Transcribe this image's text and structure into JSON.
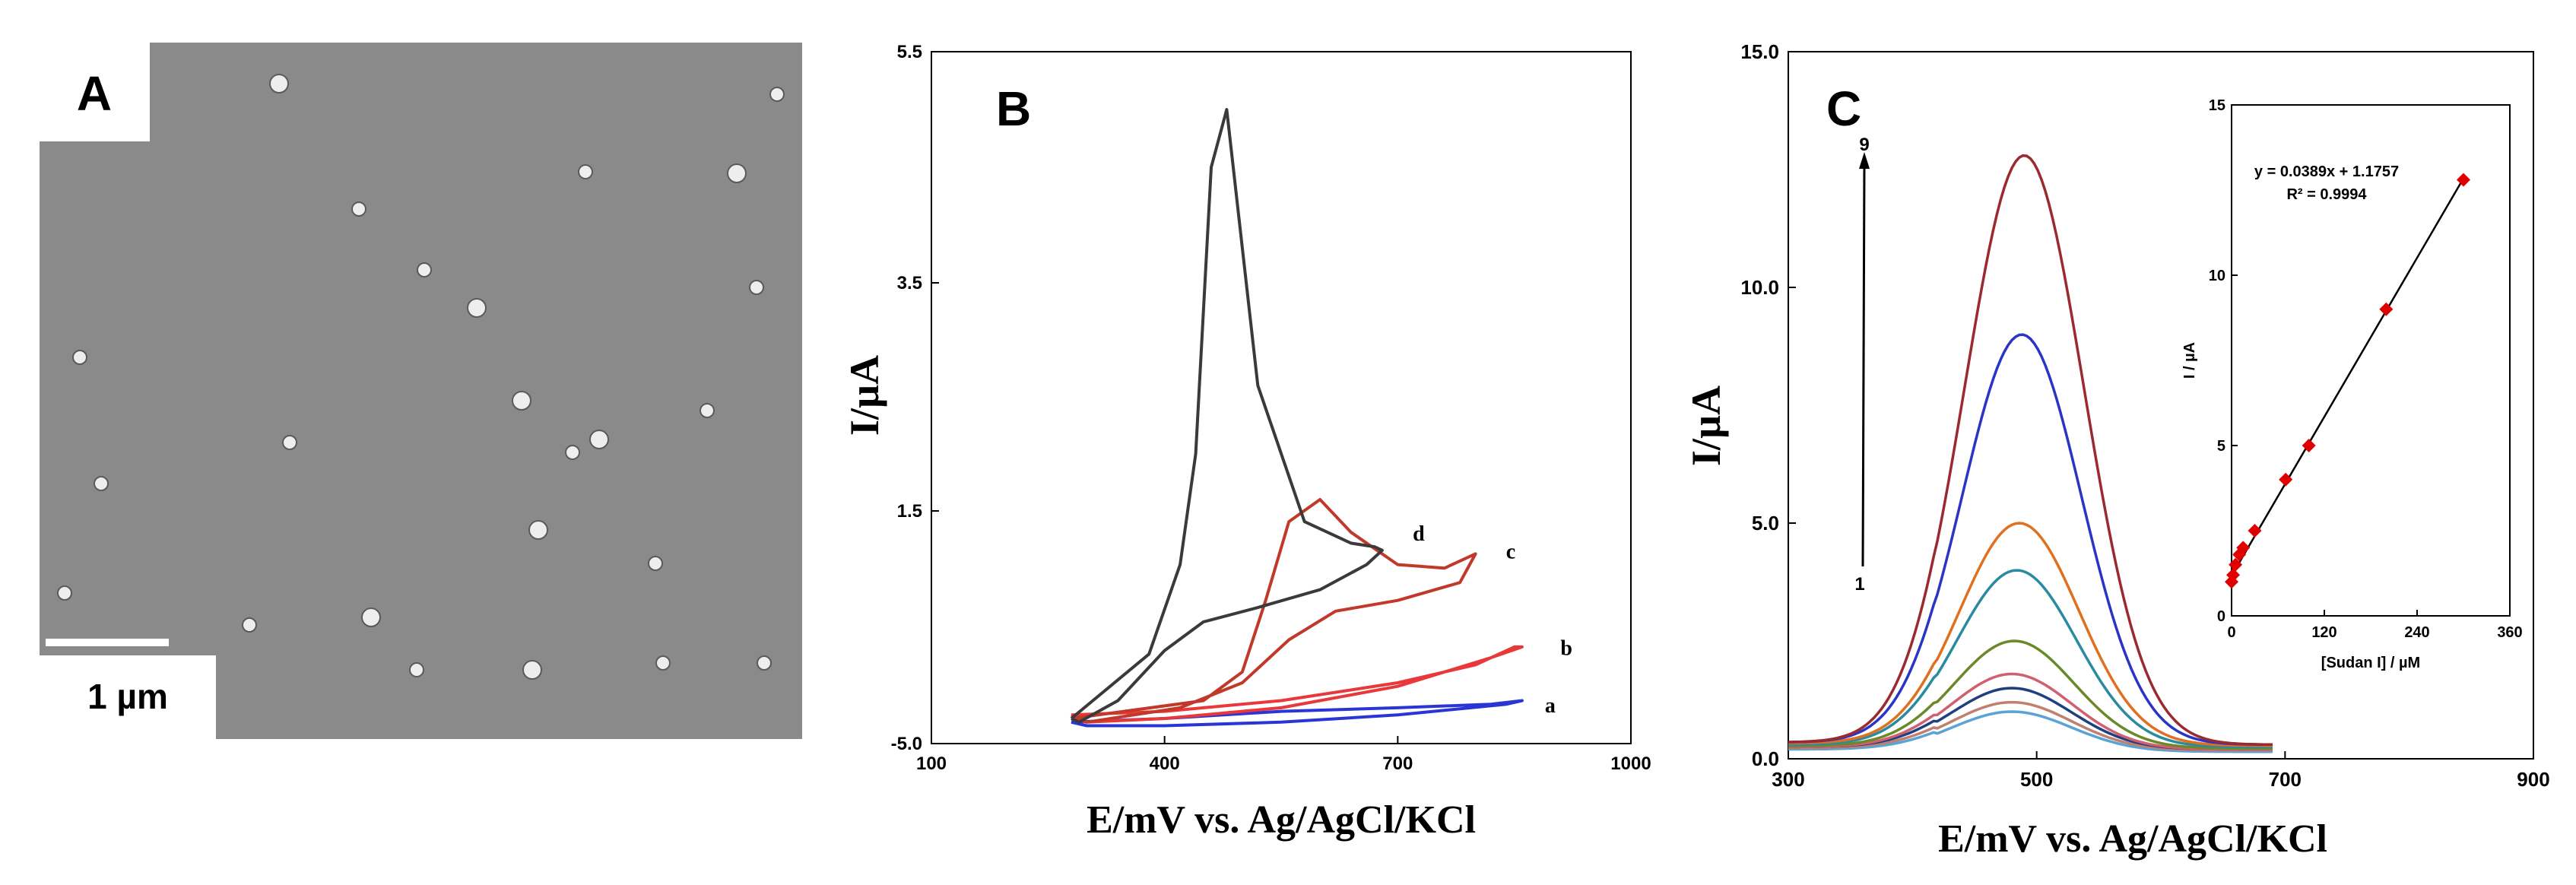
{
  "figure": {
    "panel_a": {
      "letter": "A",
      "scale_label": "1 µm",
      "image_description_note": null
    },
    "panel_b": {
      "letter": "B"
    },
    "panel_c": {
      "letter": "C"
    }
  },
  "colors": {
    "sem_background": "#8a8a8a",
    "curve_black": "#3a3a3a",
    "curve_red_dark": "#c0392b",
    "curve_red": "#e8383a",
    "curve_blue": "#2a35d6",
    "inset_marker": "#e00000"
  },
  "chart_data": [
    {
      "panel": "B",
      "type": "line",
      "title": "",
      "xlabel": "E/mV vs. Ag/AgCl/KCl",
      "ylabel": "I/µA",
      "xlim": [
        100,
        1000
      ],
      "ylim": [
        -5.0,
        5.5
      ],
      "xticks": [
        100,
        400,
        700,
        1000
      ],
      "yticks": [
        "-5.0",
        "1.5",
        "3.5",
        "5.5"
      ],
      "ytick_values": [
        -5.0,
        1.5,
        3.5,
        5.5
      ],
      "series": [
        {
          "name": "a",
          "color": "#2a35d6",
          "x": [
            280,
            400,
            550,
            700,
            820,
            860,
            840,
            700,
            550,
            400,
            300,
            280
          ],
          "y": [
            -4.4,
            -4.3,
            -4.1,
            -4.0,
            -3.9,
            -3.8,
            -3.9,
            -4.2,
            -4.4,
            -4.5,
            -4.5,
            -4.4
          ]
        },
        {
          "name": "b",
          "color": "#e8383a",
          "x": [
            280,
            400,
            550,
            700,
            800,
            850,
            860,
            820,
            700,
            550,
            400,
            300,
            280
          ],
          "y": [
            -4.2,
            -4.1,
            -3.8,
            -3.3,
            -2.8,
            -2.3,
            -2.3,
            -2.6,
            -3.4,
            -4.0,
            -4.3,
            -4.4,
            -4.2
          ]
        },
        {
          "name": "c",
          "color": "#c0392b",
          "x": [
            280,
            450,
            500,
            530,
            560,
            600,
            640,
            700,
            760,
            790,
            800,
            780,
            700,
            620,
            560,
            500,
            420,
            300,
            280
          ],
          "y": [
            -4.3,
            -3.8,
            -3.0,
            -1.0,
            1.2,
            1.6,
            0.9,
            0.0,
            -0.1,
            0.2,
            0.3,
            -0.5,
            -1.0,
            -1.3,
            -2.1,
            -3.3,
            -4.0,
            -4.4,
            -4.3
          ]
        },
        {
          "name": "d",
          "color": "#3a3a3a",
          "x": [
            280,
            380,
            420,
            440,
            460,
            480,
            520,
            580,
            640,
            670,
            680,
            660,
            600,
            520,
            450,
            400,
            340,
            290,
            280
          ],
          "y": [
            -4.3,
            -2.5,
            0.0,
            2.0,
            4.5,
            5.0,
            2.6,
            1.2,
            0.6,
            0.5,
            0.4,
            0.0,
            -0.7,
            -1.2,
            -1.6,
            -2.4,
            -3.8,
            -4.4,
            -4.3
          ]
        }
      ],
      "labels": [
        "a",
        "b",
        "c",
        "d"
      ]
    },
    {
      "panel": "C",
      "type": "line",
      "title": "",
      "xlabel": "E/mV vs. Ag/AgCl/KCl",
      "ylabel": "I/µA",
      "xlim": [
        300,
        900
      ],
      "ylim": [
        0.0,
        15.0
      ],
      "xticks": [
        300,
        500,
        700,
        900
      ],
      "yticks": [
        "0.0",
        "5.0",
        "10.0",
        "15.0"
      ],
      "ytick_values": [
        0,
        5,
        10,
        15
      ],
      "arrow_start_label": "1",
      "arrow_end_label": "9",
      "series": [
        {
          "name": "1",
          "color": "#5aa3d6",
          "peak_x": 480,
          "peak_y": 1.0,
          "baseline": 0.15
        },
        {
          "name": "2",
          "color": "#c08070",
          "peak_x": 480,
          "peak_y": 1.2,
          "baseline": 0.18
        },
        {
          "name": "3",
          "color": "#1f3f80",
          "peak_x": 480,
          "peak_y": 1.5,
          "baseline": 0.2
        },
        {
          "name": "4",
          "color": "#d06070",
          "peak_x": 480,
          "peak_y": 1.8,
          "baseline": 0.2
        },
        {
          "name": "5",
          "color": "#6a8a2a",
          "peak_x": 482,
          "peak_y": 2.5,
          "baseline": 0.22
        },
        {
          "name": "6",
          "color": "#2a8aa0",
          "peak_x": 484,
          "peak_y": 4.0,
          "baseline": 0.25
        },
        {
          "name": "7",
          "color": "#e07020",
          "peak_x": 486,
          "peak_y": 5.0,
          "baseline": 0.28
        },
        {
          "name": "8",
          "color": "#2a35c6",
          "peak_x": 488,
          "peak_y": 9.0,
          "baseline": 0.3
        },
        {
          "name": "9",
          "color": "#9a2a30",
          "peak_x": 490,
          "peak_y": 12.8,
          "baseline": 0.3
        }
      ]
    },
    {
      "panel": "C-inset",
      "type": "scatter",
      "title": "",
      "xlabel": "[Sudan I] / µM",
      "ylabel": "I / µA",
      "xlim": [
        0,
        360
      ],
      "ylim": [
        0,
        15
      ],
      "xticks": [
        0,
        120,
        240,
        360
      ],
      "yticks": [
        0,
        5,
        10,
        15
      ],
      "equation": "y = 0.0389x + 1.1757",
      "r_squared": "R² = 0.9994",
      "x": [
        0,
        2,
        5,
        10,
        15,
        30,
        70,
        100,
        200,
        300
      ],
      "y": [
        1.0,
        1.2,
        1.5,
        1.8,
        2.0,
        2.5,
        4.0,
        5.0,
        9.0,
        12.8
      ],
      "fit": {
        "slope": 0.0389,
        "intercept": 1.1757
      }
    }
  ]
}
